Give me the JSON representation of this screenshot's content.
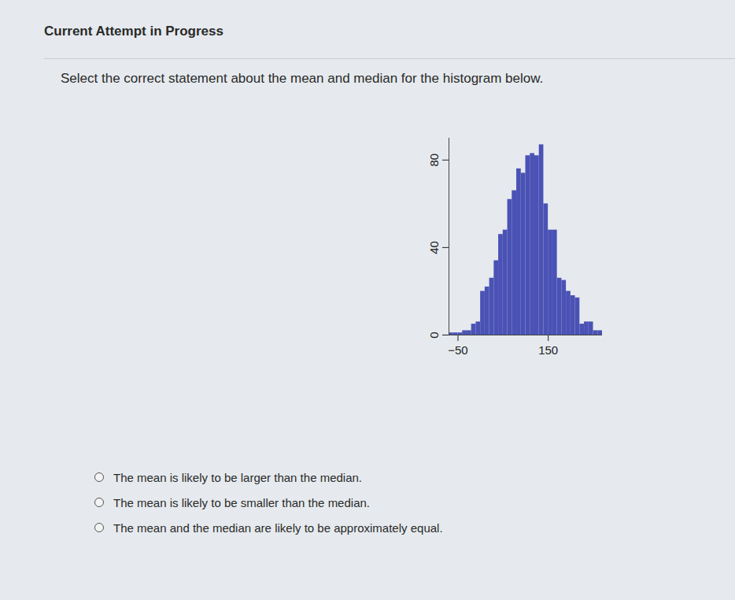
{
  "page": {
    "header": "Current Attempt in Progress",
    "question": "Select the correct statement about the mean and median for the histogram below.",
    "options": [
      "The mean is likely to be larger than the median.",
      "The mean is likely to be smaller than the median.",
      "The mean and the median are likely to be approximately equal."
    ]
  },
  "chart_data": {
    "type": "histogram",
    "bins": [
      -70,
      -60,
      -50,
      -40,
      -30,
      -20,
      -10,
      0,
      10,
      20,
      30,
      40,
      50,
      60,
      70,
      80,
      90,
      100,
      110,
      120,
      130,
      140,
      150,
      160,
      170,
      180,
      190,
      200,
      210,
      220,
      230,
      240,
      250,
      260,
      270
    ],
    "counts": [
      1,
      1,
      1,
      2,
      2,
      5,
      6,
      20,
      22,
      26,
      34,
      46,
      48,
      62,
      66,
      76,
      74,
      82,
      83,
      82,
      87,
      60,
      48,
      48,
      26,
      25,
      20,
      18,
      17,
      5,
      6,
      6,
      2,
      2
    ],
    "color": "#4a52b5",
    "xlim": [
      -70,
      270
    ],
    "ylim": [
      0,
      90
    ],
    "xticks": [
      -50,
      150
    ],
    "yticks": [
      0,
      40,
      80
    ],
    "grid": false
  }
}
